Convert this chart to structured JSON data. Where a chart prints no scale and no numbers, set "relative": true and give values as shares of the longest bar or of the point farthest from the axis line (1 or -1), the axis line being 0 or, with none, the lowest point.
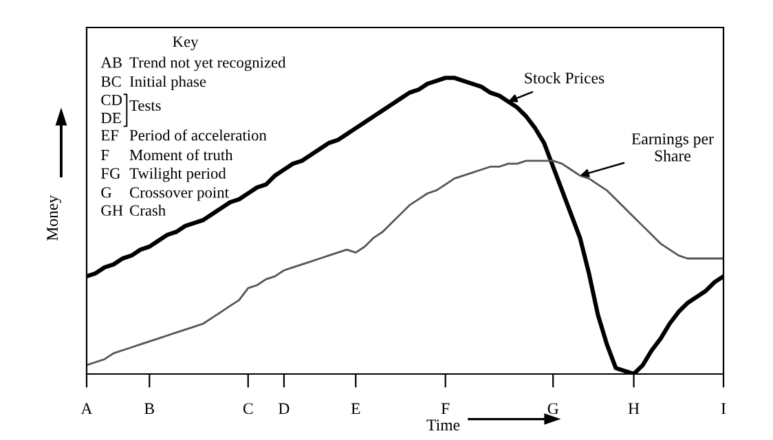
{
  "chart_data": {
    "type": "line",
    "relative": true,
    "xlabel": "Time",
    "ylabel": "Money",
    "categories": [
      "A",
      null,
      null,
      null,
      null,
      null,
      null,
      "B",
      null,
      null,
      null,
      null,
      null,
      null,
      null,
      null,
      null,
      null,
      "C",
      null,
      null,
      null,
      "D",
      null,
      null,
      null,
      null,
      null,
      null,
      null,
      "E",
      null,
      null,
      null,
      null,
      null,
      null,
      null,
      null,
      null,
      "F",
      null,
      null,
      null,
      null,
      null,
      null,
      null,
      null,
      null,
      null,
      null,
      "G",
      null,
      null,
      null,
      null,
      null,
      null,
      null,
      null,
      "H",
      null,
      null,
      null,
      null,
      null,
      null,
      null,
      null,
      null,
      "I"
    ],
    "series": [
      {
        "name": "Stock Prices",
        "color": "#000000",
        "values": [
          0.33,
          0.34,
          0.36,
          0.37,
          0.39,
          0.4,
          0.42,
          0.43,
          0.45,
          0.47,
          0.48,
          0.5,
          0.51,
          0.52,
          0.54,
          0.56,
          0.58,
          0.59,
          0.61,
          0.63,
          0.64,
          0.67,
          0.69,
          0.71,
          0.72,
          0.74,
          0.76,
          0.78,
          0.79,
          0.81,
          0.83,
          0.85,
          0.87,
          0.89,
          0.91,
          0.93,
          0.95,
          0.96,
          0.98,
          0.99,
          1.0,
          1.0,
          0.99,
          0.98,
          0.97,
          0.95,
          0.94,
          0.92,
          0.9,
          0.87,
          0.83,
          0.78,
          0.7,
          0.62,
          0.54,
          0.46,
          0.34,
          0.2,
          0.1,
          0.02,
          0.01,
          0.0,
          0.03,
          0.08,
          0.12,
          0.17,
          0.21,
          0.24,
          0.26,
          0.28,
          0.31,
          0.33
        ]
      },
      {
        "name": "Earnings per\nShare",
        "color": "#555555",
        "values": [
          0.03,
          0.04,
          0.05,
          0.07,
          0.08,
          0.09,
          0.1,
          0.11,
          0.12,
          0.13,
          0.14,
          0.15,
          0.16,
          0.17,
          0.19,
          0.21,
          0.23,
          0.25,
          0.29,
          0.3,
          0.32,
          0.33,
          0.35,
          0.36,
          0.37,
          0.38,
          0.39,
          0.4,
          0.41,
          0.42,
          0.41,
          0.43,
          0.46,
          0.48,
          0.51,
          0.54,
          0.57,
          0.59,
          0.61,
          0.62,
          0.64,
          0.66,
          0.67,
          0.68,
          0.69,
          0.7,
          0.7,
          0.71,
          0.71,
          0.72,
          0.72,
          0.72,
          0.72,
          0.71,
          0.69,
          0.67,
          0.66,
          0.64,
          0.62,
          0.59,
          0.56,
          0.53,
          0.5,
          0.47,
          0.44,
          0.42,
          0.4,
          0.39,
          0.39,
          0.39,
          0.39,
          0.39
        ]
      }
    ],
    "annotations": [
      "Key",
      "AB",
      "Trend not yet recognized",
      "BC",
      "Initial phase",
      "CD",
      "DE",
      "Tests",
      "EF",
      "Period of acceleration",
      "F",
      "Moment of truth",
      "FG",
      "Twilight period",
      "G",
      "Crossover point",
      "GH",
      "Crash"
    ],
    "legend": false,
    "grid": false,
    "marker": "none",
    "line_style": "solid"
  }
}
